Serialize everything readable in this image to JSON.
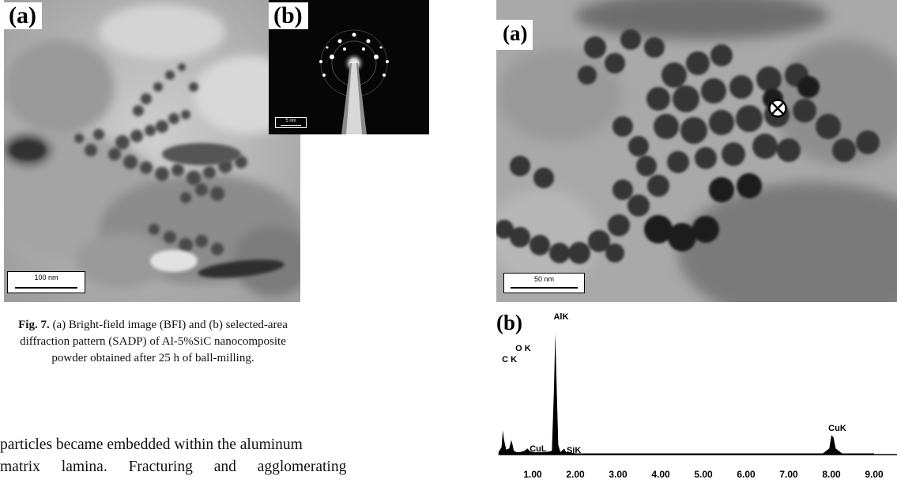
{
  "figure7": {
    "panel_a_label": "(a)",
    "panel_b_label": "(b)",
    "scalebar_a": "100 nm",
    "scalebar_b": "5 nm",
    "caption_fig": "Fig. 7.",
    "caption_text": " (a) Bright-field image (BFI) and (b) selected-area diffraction pattern (SADP) of Al-5%SiC nanocomposite powder obtained after 25 h of ball-milling."
  },
  "body_text": {
    "line1": "particles became embedded within the aluminum",
    "line2": "matrix lamina. Fracturing and agglomerating"
  },
  "figure8": {
    "panel_a_label": "(a)",
    "panel_b_label": "(b)",
    "scalebar_a": "50 nm",
    "marker_icon": "circled-x-icon"
  },
  "chart_data": {
    "type": "line",
    "title": "",
    "xlabel": "",
    "ylabel": "",
    "xlim": [
      0.2,
      9.0
    ],
    "x_ticks": [
      "1.00",
      "2.00",
      "3.00",
      "4.00",
      "5.00",
      "6.00",
      "7.00",
      "8.00",
      "9.00"
    ],
    "series": [
      {
        "x": [
          0.2,
          0.27,
          0.3,
          0.33,
          0.38,
          0.45,
          0.5,
          0.53,
          0.56,
          0.62,
          0.7,
          0.8,
          0.88,
          0.93,
          1.0,
          1.1,
          1.3,
          1.45,
          1.5,
          1.53,
          1.56,
          1.6,
          1.65,
          1.74,
          1.78,
          1.85,
          2.0,
          2.5,
          3.0,
          4.0,
          5.0,
          6.0,
          7.0,
          7.8,
          7.95,
          8.0,
          8.05,
          8.1,
          8.25,
          9.0
        ],
        "y": [
          2,
          6,
          20,
          12,
          4,
          5,
          12,
          8,
          3,
          2,
          2,
          3,
          5,
          3,
          2,
          2,
          2,
          3,
          55,
          100,
          60,
          8,
          2,
          5,
          2,
          2,
          1,
          1,
          1,
          1,
          1,
          1,
          1,
          1,
          5,
          16,
          14,
          5,
          1,
          1
        ]
      }
    ],
    "peak_labels": [
      {
        "text": "AlK",
        "x": 1.49
      },
      {
        "text": "O K",
        "x": 0.52
      },
      {
        "text": "C K",
        "x": 0.28
      },
      {
        "text": "CuL",
        "x": 0.93
      },
      {
        "text": "SiK",
        "x": 1.74
      },
      {
        "text": "CuK",
        "x": 8.04
      }
    ],
    "grid": false
  },
  "colors": {
    "micrograph_light": "#b9b9b9",
    "micrograph_dark": "#3a3a3a",
    "sadp_background": "#060606"
  }
}
